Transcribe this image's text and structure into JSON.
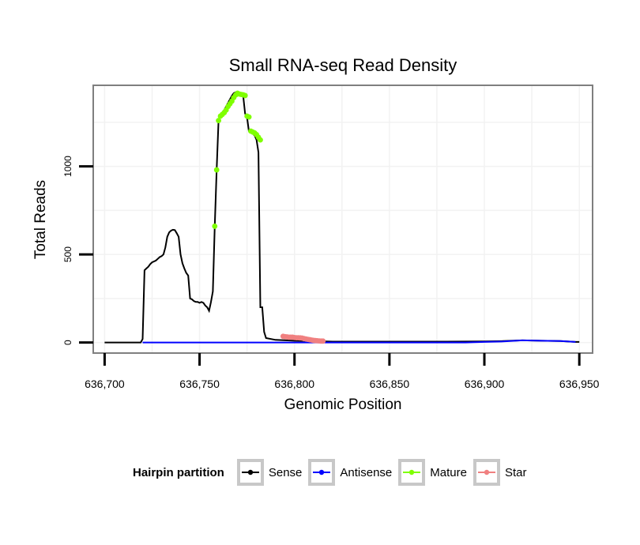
{
  "chart_data": {
    "type": "line",
    "title": "Small RNA-seq Read Density",
    "xlabel": "Genomic Position",
    "ylabel": "Total Reads",
    "xlim": [
      636694,
      636957
    ],
    "ylim": [
      -60,
      1460
    ],
    "x_ticks": [
      636700,
      636750,
      636800,
      636850,
      636900,
      636950
    ],
    "x_tick_labels": [
      "636,700",
      "636,750",
      "636,800",
      "636,850",
      "636,900",
      "636,950"
    ],
    "y_ticks": [
      0,
      500,
      1000
    ],
    "y_tick_labels": [
      "0",
      "500",
      "1000"
    ],
    "grid": true,
    "legend": {
      "title": "Hairpin partition",
      "position": "bottom",
      "entries": [
        "Sense",
        "Antisense",
        "Mature",
        "Star"
      ]
    },
    "series": [
      {
        "name": "Sense",
        "color": "#000000",
        "points": [
          [
            636700,
            0
          ],
          [
            636719,
            0
          ],
          [
            636720,
            20
          ],
          [
            636721,
            410
          ],
          [
            636722,
            420
          ],
          [
            636723,
            430
          ],
          [
            636724,
            445
          ],
          [
            636725,
            455
          ],
          [
            636726,
            460
          ],
          [
            636727,
            465
          ],
          [
            636728,
            475
          ],
          [
            636729,
            485
          ],
          [
            636730,
            490
          ],
          [
            636731,
            500
          ],
          [
            636732,
            540
          ],
          [
            636733,
            600
          ],
          [
            636734,
            625
          ],
          [
            636735,
            635
          ],
          [
            636736,
            640
          ],
          [
            636737,
            638
          ],
          [
            636738,
            620
          ],
          [
            636739,
            600
          ],
          [
            636740,
            500
          ],
          [
            636741,
            450
          ],
          [
            636742,
            420
          ],
          [
            636743,
            395
          ],
          [
            636744,
            380
          ],
          [
            636745,
            250
          ],
          [
            636746,
            245
          ],
          [
            636747,
            235
          ],
          [
            636748,
            230
          ],
          [
            636749,
            230
          ],
          [
            636750,
            225
          ],
          [
            636751,
            230
          ],
          [
            636752,
            225
          ],
          [
            636753,
            210
          ],
          [
            636754,
            200
          ],
          [
            636755,
            180
          ],
          [
            636756,
            230
          ],
          [
            636757,
            290
          ],
          [
            636758,
            660
          ],
          [
            636759,
            980
          ],
          [
            636760,
            1260
          ],
          [
            636761,
            1290
          ],
          [
            636762,
            1305
          ],
          [
            636763,
            1320
          ],
          [
            636764,
            1340
          ],
          [
            636765,
            1360
          ],
          [
            636766,
            1380
          ],
          [
            636767,
            1400
          ],
          [
            636768,
            1415
          ],
          [
            636769,
            1420
          ],
          [
            636770,
            1410
          ],
          [
            636771,
            1410
          ],
          [
            636772,
            1408
          ],
          [
            636773,
            1400
          ],
          [
            636774,
            1300
          ],
          [
            636775,
            1280
          ],
          [
            636776,
            1200
          ],
          [
            636777,
            1190
          ],
          [
            636778,
            1185
          ],
          [
            636779,
            1175
          ],
          [
            636780,
            1150
          ],
          [
            636781,
            1080
          ],
          [
            636782,
            200
          ],
          [
            636783,
            200
          ],
          [
            636784,
            60
          ],
          [
            636785,
            25
          ],
          [
            636790,
            15
          ],
          [
            636800,
            10
          ],
          [
            636810,
            8
          ],
          [
            636820,
            5
          ],
          [
            636850,
            5
          ],
          [
            636880,
            5
          ],
          [
            636900,
            6
          ],
          [
            636910,
            8
          ],
          [
            636920,
            12
          ],
          [
            636930,
            10
          ],
          [
            636940,
            8
          ],
          [
            636948,
            3
          ],
          [
            636950,
            3
          ]
        ]
      },
      {
        "name": "Antisense",
        "color": "#0000ff",
        "points": [
          [
            636720,
            0
          ],
          [
            636760,
            0
          ],
          [
            636800,
            0
          ],
          [
            636830,
            0
          ],
          [
            636860,
            0
          ],
          [
            636890,
            0
          ],
          [
            636900,
            3
          ],
          [
            636910,
            6
          ],
          [
            636920,
            12
          ],
          [
            636930,
            10
          ],
          [
            636940,
            8
          ],
          [
            636948,
            3
          ]
        ]
      },
      {
        "name": "Mature",
        "color": "#7fff00",
        "points": [
          [
            636758,
            660
          ],
          [
            636759,
            980
          ],
          [
            636760,
            1260
          ],
          [
            636761,
            1285
          ],
          [
            636762,
            1295
          ],
          [
            636763,
            1305
          ],
          [
            636764,
            1320
          ],
          [
            636765,
            1340
          ],
          [
            636766,
            1355
          ],
          [
            636767,
            1370
          ],
          [
            636768,
            1390
          ],
          [
            636769,
            1405
          ],
          [
            636770,
            1415
          ],
          [
            636771,
            1410
          ],
          [
            636772,
            1408
          ],
          [
            636773,
            1406
          ],
          [
            636774,
            1402
          ],
          [
            636775,
            1285
          ],
          [
            636776,
            1280
          ],
          [
            636777,
            1200
          ],
          [
            636778,
            1195
          ],
          [
            636779,
            1190
          ],
          [
            636780,
            1180
          ],
          [
            636781,
            1165
          ],
          [
            636782,
            1150
          ]
        ]
      },
      {
        "name": "Star",
        "color": "#f08080",
        "points": [
          [
            636794,
            35
          ],
          [
            636795,
            33
          ],
          [
            636796,
            32
          ],
          [
            636797,
            30
          ],
          [
            636798,
            30
          ],
          [
            636799,
            30
          ],
          [
            636800,
            28
          ],
          [
            636801,
            27
          ],
          [
            636802,
            27
          ],
          [
            636803,
            26
          ],
          [
            636804,
            25
          ],
          [
            636805,
            22
          ],
          [
            636806,
            20
          ],
          [
            636807,
            18
          ],
          [
            636808,
            16
          ],
          [
            636809,
            14
          ],
          [
            636810,
            12
          ],
          [
            636811,
            11
          ],
          [
            636812,
            10
          ],
          [
            636813,
            9
          ],
          [
            636814,
            8
          ],
          [
            636815,
            8
          ]
        ]
      }
    ]
  }
}
